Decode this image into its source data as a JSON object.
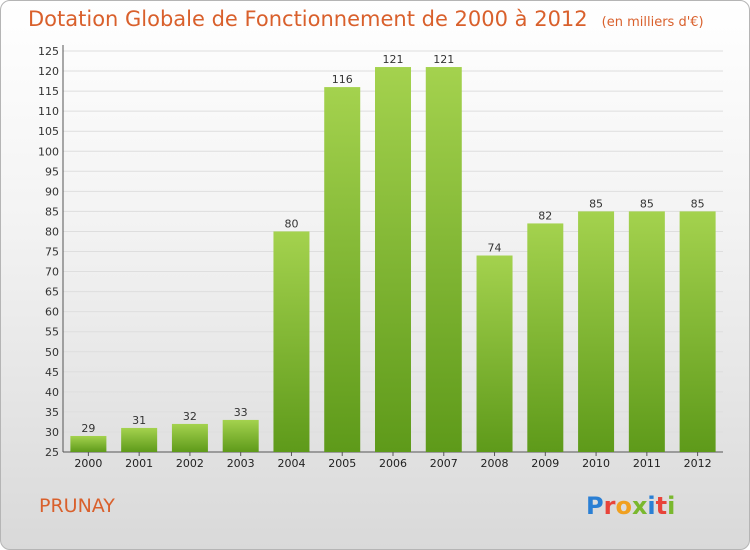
{
  "header": {
    "title": "Dotation Globale de Fonctionnement de 2000 à 2012",
    "unit": "(en milliers d'€)"
  },
  "footer": {
    "commune": "PRUNAY",
    "logo_text": "Proxiti",
    "logo_colors": [
      "#2a7fd4",
      "#e8443a",
      "#f0a020",
      "#7ab82e",
      "#2a7fd4",
      "#e8443a",
      "#7ab82e"
    ]
  },
  "chart_data": {
    "type": "bar",
    "title": "Dotation Globale de Fonctionnement de 2000 à 2012",
    "subtitle": "(en milliers d'€)",
    "xlabel": "",
    "ylabel": "",
    "categories": [
      "2000",
      "2001",
      "2002",
      "2003",
      "2004",
      "2005",
      "2006",
      "2007",
      "2008",
      "2009",
      "2010",
      "2011",
      "2012"
    ],
    "values": [
      29,
      31,
      32,
      33,
      80,
      116,
      121,
      121,
      74,
      82,
      85,
      85,
      85
    ],
    "ylim": [
      25,
      125
    ],
    "yticks": [
      25,
      30,
      35,
      40,
      45,
      50,
      55,
      60,
      65,
      70,
      75,
      80,
      85,
      90,
      95,
      100,
      105,
      110,
      115,
      120,
      125
    ],
    "grid": true,
    "legend": "none",
    "bar_color_top": "#a4d24e",
    "bar_color_bottom": "#5e9a1a"
  }
}
